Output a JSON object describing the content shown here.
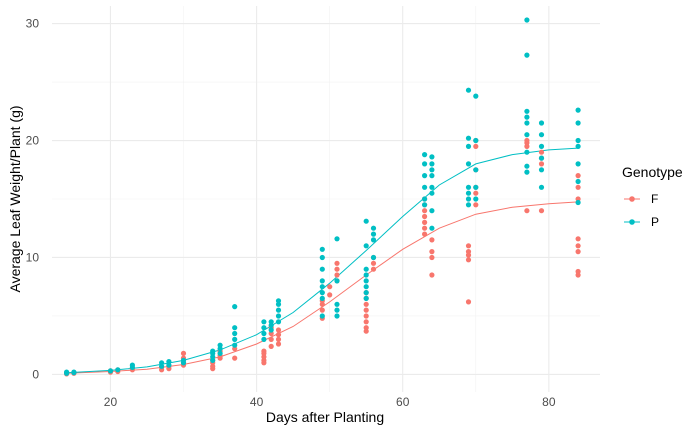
{
  "chart_data": {
    "type": "scatter",
    "xlabel": "Days after Planting",
    "ylabel": "Average Leaf Weight/Plant (g)",
    "xlim": [
      12,
      87
    ],
    "ylim": [
      -1.5,
      31.5
    ],
    "x_ticks": [
      20,
      40,
      60,
      80
    ],
    "y_ticks": [
      0,
      10,
      20,
      30
    ],
    "grid": true,
    "legend": {
      "title": "Genotype",
      "position": "right"
    },
    "series": [
      {
        "name": "F",
        "color": "#F8766D",
        "points": [
          [
            14,
            0.05
          ],
          [
            14,
            0.1
          ],
          [
            14,
            0.15
          ],
          [
            15,
            0.1
          ],
          [
            15,
            0.15
          ],
          [
            20,
            0.2
          ],
          [
            20,
            0.3
          ],
          [
            21,
            0.25
          ],
          [
            21,
            0.4
          ],
          [
            23,
            0.4
          ],
          [
            23,
            0.5
          ],
          [
            27,
            0.4
          ],
          [
            27,
            0.6
          ],
          [
            28,
            0.5
          ],
          [
            28,
            0.7
          ],
          [
            30,
            0.8
          ],
          [
            30,
            1.0
          ],
          [
            30,
            1.4
          ],
          [
            30,
            1.8
          ],
          [
            34,
            0.5
          ],
          [
            34,
            0.7
          ],
          [
            34,
            1.0
          ],
          [
            34,
            1.2
          ],
          [
            35,
            1.4
          ],
          [
            35,
            1.6
          ],
          [
            35,
            2.0
          ],
          [
            37,
            1.4
          ],
          [
            37,
            2.2
          ],
          [
            41,
            1.0
          ],
          [
            41,
            1.2
          ],
          [
            41,
            1.5
          ],
          [
            41,
            1.8
          ],
          [
            41,
            2.0
          ],
          [
            42,
            2.4
          ],
          [
            42,
            3.0
          ],
          [
            42,
            3.5
          ],
          [
            42,
            4.0
          ],
          [
            43,
            2.6
          ],
          [
            43,
            3.0
          ],
          [
            43,
            3.4
          ],
          [
            43,
            3.8
          ],
          [
            49,
            4.8
          ],
          [
            49,
            5.5
          ],
          [
            49,
            6.0
          ],
          [
            49,
            6.3
          ],
          [
            50,
            6.8
          ],
          [
            50,
            7.5
          ],
          [
            51,
            8.0
          ],
          [
            51,
            8.5
          ],
          [
            51,
            9.0
          ],
          [
            51,
            9.5
          ],
          [
            55,
            3.7
          ],
          [
            55,
            4.0
          ],
          [
            55,
            4.5
          ],
          [
            55,
            5.0
          ],
          [
            55,
            5.5
          ],
          [
            55,
            6.0
          ],
          [
            55,
            6.5
          ],
          [
            55,
            7.0
          ],
          [
            56,
            9.0
          ],
          [
            56,
            9.5
          ],
          [
            56,
            10.0
          ],
          [
            63,
            12.0
          ],
          [
            63,
            12.5
          ],
          [
            63,
            13.0
          ],
          [
            63,
            13.5
          ],
          [
            63,
            14.0
          ],
          [
            63,
            14.5
          ],
          [
            63,
            15.0
          ],
          [
            64,
            8.5
          ],
          [
            64,
            10.0
          ],
          [
            64,
            10.5
          ],
          [
            64,
            11.5
          ],
          [
            69,
            6.2
          ],
          [
            69,
            9.8
          ],
          [
            69,
            10.2
          ],
          [
            69,
            10.5
          ],
          [
            69,
            11.0
          ],
          [
            70,
            14.5
          ],
          [
            70,
            15.5
          ],
          [
            70,
            16.0
          ],
          [
            70,
            17.5
          ],
          [
            70,
            19.5
          ],
          [
            70,
            20.0
          ],
          [
            77,
            14.0
          ],
          [
            77,
            19.5
          ],
          [
            77,
            19.8
          ],
          [
            77,
            20.0
          ],
          [
            79,
            14.0
          ],
          [
            79,
            18.0
          ],
          [
            79,
            18.5
          ],
          [
            79,
            19.0
          ],
          [
            84,
            8.5
          ],
          [
            84,
            8.8
          ],
          [
            84,
            10.5
          ],
          [
            84,
            11.0
          ],
          [
            84,
            11.6
          ],
          [
            84,
            15.0
          ],
          [
            84,
            16.0
          ],
          [
            84,
            17.0
          ]
        ],
        "fit": [
          [
            14,
            0.1
          ],
          [
            20,
            0.25
          ],
          [
            25,
            0.45
          ],
          [
            30,
            0.85
          ],
          [
            35,
            1.5
          ],
          [
            40,
            2.6
          ],
          [
            45,
            4.1
          ],
          [
            50,
            6.2
          ],
          [
            55,
            8.5
          ],
          [
            60,
            10.7
          ],
          [
            65,
            12.5
          ],
          [
            70,
            13.7
          ],
          [
            75,
            14.3
          ],
          [
            80,
            14.6
          ],
          [
            84,
            14.75
          ]
        ]
      },
      {
        "name": "P",
        "color": "#00BFC4",
        "points": [
          [
            14,
            0.1
          ],
          [
            14,
            0.2
          ],
          [
            15,
            0.15
          ],
          [
            15,
            0.2
          ],
          [
            20,
            0.3
          ],
          [
            21,
            0.4
          ],
          [
            23,
            0.6
          ],
          [
            23,
            0.8
          ],
          [
            27,
            0.7
          ],
          [
            27,
            1.0
          ],
          [
            28,
            0.8
          ],
          [
            28,
            1.1
          ],
          [
            30,
            1.0
          ],
          [
            30,
            1.2
          ],
          [
            34,
            1.2
          ],
          [
            34,
            1.5
          ],
          [
            34,
            1.8
          ],
          [
            34,
            2.0
          ],
          [
            35,
            1.8
          ],
          [
            35,
            2.2
          ],
          [
            35,
            2.5
          ],
          [
            37,
            2.5
          ],
          [
            37,
            3.0
          ],
          [
            37,
            3.5
          ],
          [
            37,
            4.0
          ],
          [
            37,
            5.8
          ],
          [
            41,
            3.0
          ],
          [
            41,
            3.5
          ],
          [
            41,
            4.0
          ],
          [
            41,
            4.5
          ],
          [
            42,
            3.8
          ],
          [
            42,
            4.2
          ],
          [
            42,
            4.5
          ],
          [
            43,
            4.5
          ],
          [
            43,
            5.0
          ],
          [
            43,
            5.5
          ],
          [
            43,
            6.0
          ],
          [
            43,
            6.3
          ],
          [
            49,
            5.0
          ],
          [
            49,
            6.5
          ],
          [
            49,
            7.0
          ],
          [
            49,
            7.5
          ],
          [
            49,
            8.0
          ],
          [
            49,
            9.0
          ],
          [
            49,
            10.0
          ],
          [
            49,
            10.7
          ],
          [
            51,
            5.0
          ],
          [
            51,
            5.5
          ],
          [
            51,
            6.0
          ],
          [
            51,
            8.0
          ],
          [
            51,
            11.6
          ],
          [
            55,
            6.5
          ],
          [
            55,
            7.0
          ],
          [
            55,
            7.5
          ],
          [
            55,
            8.0
          ],
          [
            55,
            8.5
          ],
          [
            55,
            9.0
          ],
          [
            55,
            11.0
          ],
          [
            55,
            13.1
          ],
          [
            56,
            10.0
          ],
          [
            56,
            11.5
          ],
          [
            56,
            12.0
          ],
          [
            56,
            12.5
          ],
          [
            63,
            14.5
          ],
          [
            63,
            15.0
          ],
          [
            63,
            16.0
          ],
          [
            63,
            17.0
          ],
          [
            63,
            18.0
          ],
          [
            63,
            18.8
          ],
          [
            64,
            12.5
          ],
          [
            64,
            14.0
          ],
          [
            64,
            15.5
          ],
          [
            64,
            16.0
          ],
          [
            64,
            17.0
          ],
          [
            64,
            17.5
          ],
          [
            64,
            18.0
          ],
          [
            64,
            18.6
          ],
          [
            69,
            14.5
          ],
          [
            69,
            15.0
          ],
          [
            69,
            15.5
          ],
          [
            69,
            16.0
          ],
          [
            69,
            18.0
          ],
          [
            69,
            19.5
          ],
          [
            69,
            20.2
          ],
          [
            69,
            24.3
          ],
          [
            70,
            15.0
          ],
          [
            70,
            16.0
          ],
          [
            70,
            17.5
          ],
          [
            70,
            20.0
          ],
          [
            70,
            23.8
          ],
          [
            77,
            17.3
          ],
          [
            77,
            17.8
          ],
          [
            77,
            19.0
          ],
          [
            77,
            20.5
          ],
          [
            77,
            21.5
          ],
          [
            77,
            22.0
          ],
          [
            77,
            22.5
          ],
          [
            77,
            27.3
          ],
          [
            77,
            30.3
          ],
          [
            79,
            16.0
          ],
          [
            79,
            17.5
          ],
          [
            79,
            18.5
          ],
          [
            79,
            19.5
          ],
          [
            79,
            20.5
          ],
          [
            79,
            21.5
          ],
          [
            84,
            14.7
          ],
          [
            84,
            16.5
          ],
          [
            84,
            18.0
          ],
          [
            84,
            19.5
          ],
          [
            84,
            20.0
          ],
          [
            84,
            21.5
          ],
          [
            84,
            22.6
          ]
        ],
        "fit": [
          [
            14,
            0.15
          ],
          [
            20,
            0.35
          ],
          [
            25,
            0.65
          ],
          [
            30,
            1.2
          ],
          [
            35,
            2.1
          ],
          [
            40,
            3.4
          ],
          [
            45,
            5.3
          ],
          [
            50,
            7.8
          ],
          [
            55,
            10.6
          ],
          [
            60,
            13.5
          ],
          [
            65,
            16.2
          ],
          [
            70,
            18.0
          ],
          [
            75,
            18.8
          ],
          [
            80,
            19.2
          ],
          [
            84,
            19.35
          ]
        ]
      }
    ]
  }
}
